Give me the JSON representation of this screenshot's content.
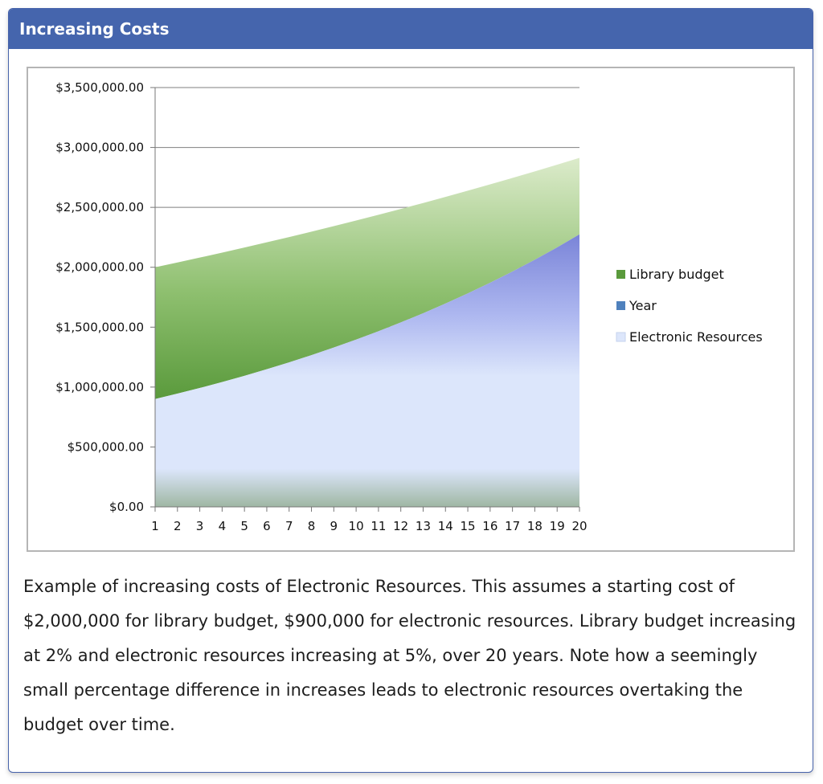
{
  "panel": {
    "title": "Increasing Costs",
    "caption": "Example of increasing costs of Electronic Resources.  This assumes a starting cost of $2,000,000 for library budget, $900,000 for electronic resources.  Library budget increasing at 2% and electronic resources increasing at 5%, over 20 years.  Note how a seemingly small percentage difference in increases leads to electronic resources overtaking the budget over time."
  },
  "colors": {
    "header": "#4565ad",
    "library_budget": "#5a9a3c",
    "year": "#4f81bd",
    "electronic_resources": "#dce6fb",
    "gridline": "#7f7f7f"
  },
  "chart_data": {
    "type": "area",
    "title": "",
    "xlabel": "",
    "ylabel": "",
    "x": [
      1,
      2,
      3,
      4,
      5,
      6,
      7,
      8,
      9,
      10,
      11,
      12,
      13,
      14,
      15,
      16,
      17,
      18,
      19,
      20
    ],
    "y_ticks": [
      "$0.00",
      "$500,000.00",
      "$1,000,000.00",
      "$1,500,000.00",
      "$2,000,000.00",
      "$2,500,000.00",
      "$3,000,000.00",
      "$3,500,000.00"
    ],
    "ylim": [
      0,
      3500000
    ],
    "grid": true,
    "legend_position": "right",
    "series": [
      {
        "name": "Library budget",
        "values": [
          2000000,
          2040000,
          2080800,
          2122416,
          2164864,
          2208162,
          2252325,
          2297371,
          2343319,
          2390185,
          2437989,
          2486749,
          2536484,
          2587213,
          2638958,
          2691737,
          2745572,
          2800483,
          2856493,
          2913622
        ]
      },
      {
        "name": "Year",
        "values": [
          1,
          2,
          3,
          4,
          5,
          6,
          7,
          8,
          9,
          10,
          11,
          12,
          13,
          14,
          15,
          16,
          17,
          18,
          19,
          20
        ]
      },
      {
        "name": "Electronic Resources",
        "values": [
          900000,
          945000,
          992250,
          1041863,
          1093956,
          1148653,
          1206086,
          1266390,
          1329710,
          1396195,
          1466005,
          1539305,
          1616270,
          1697084,
          1781938,
          1871035,
          1964587,
          2062816,
          2165957,
          2274255
        ]
      }
    ]
  }
}
